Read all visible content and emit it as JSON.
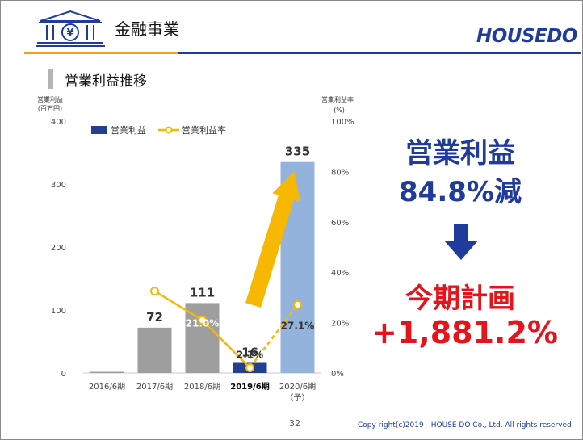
{
  "header": {
    "title": "金融事業",
    "logo": "HOUSEDO"
  },
  "section": {
    "title": "営業利益推移"
  },
  "chart_data": {
    "type": "bar",
    "categories": [
      "2016/6期",
      "2017/6期",
      "2018/6期",
      "2019/6期",
      "2020/6期"
    ],
    "category_sub": [
      "",
      "",
      "",
      "",
      "（予）"
    ],
    "series": [
      {
        "name": "営業利益",
        "values": [
          1,
          72,
          111,
          16,
          335
        ]
      },
      {
        "name": "営業利益率",
        "values": [
          null,
          32.5,
          21.0,
          2.1,
          27.1
        ]
      }
    ],
    "bar_labels": [
      "",
      "72",
      "111",
      "16",
      "335"
    ],
    "line_labels": [
      "",
      "",
      "21.0%",
      "2.1%",
      "27.1%"
    ],
    "ylabel": "営業利益\n(百万円)",
    "y2label": "営業利益率\n(%)",
    "ylim": [
      0,
      400
    ],
    "y2lim": [
      0,
      100
    ],
    "yticks": [
      "0",
      "100",
      "200",
      "300",
      "400"
    ],
    "y2ticks": [
      "0%",
      "20%",
      "40%",
      "60%",
      "80%",
      "100%"
    ],
    "colors": {
      "gray": "#9e9e9e",
      "navy": "#243f8f",
      "light_blue": "#94b3dc",
      "line": "#f6b800"
    }
  },
  "kpi": {
    "line1": "営業利益",
    "line2": "84.8%減",
    "line3": "今期計画",
    "line4": "+1,881.2%"
  },
  "footer": {
    "page": "32",
    "copyright": "Copy right(c)2019　HOUSE DO Co., Ltd. All rights reserved"
  }
}
